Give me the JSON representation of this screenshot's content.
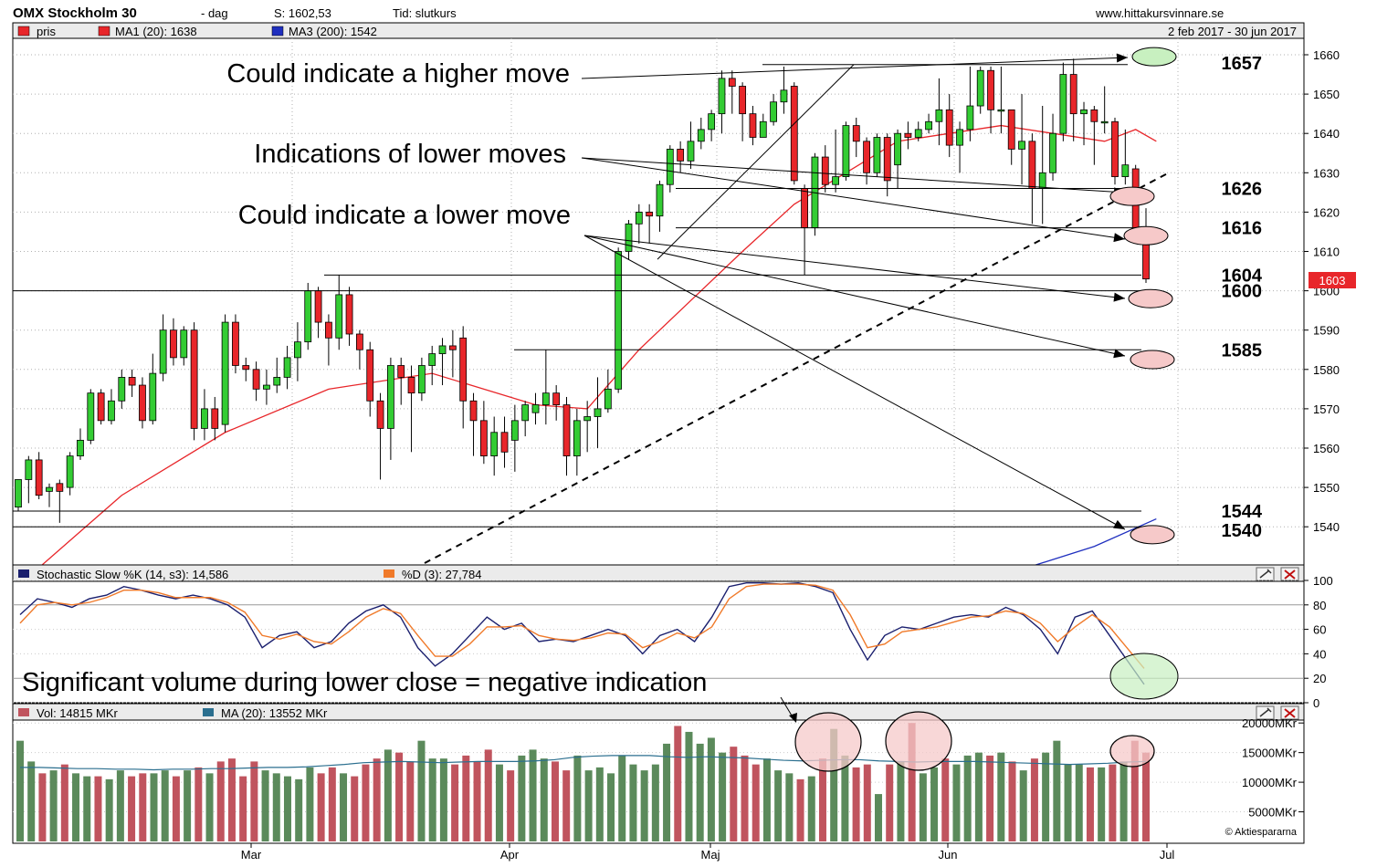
{
  "header": {
    "title": "OMX Stockholm 30",
    "period": "-  dag",
    "close_label": "S: 1602,53",
    "time_label": "Tid: slutkurs",
    "site": "www.hittakursvinnare.se",
    "date_range": "2 feb 2017 - 30 jun 2017"
  },
  "legend": {
    "price": {
      "label": "pris",
      "color": "#e8262a"
    },
    "ma1": {
      "label": "MA1 (20): 1638",
      "color": "#e8262a"
    },
    "ma3": {
      "label": "MA3 (200): 1542",
      "color": "#1f2fbf"
    }
  },
  "stoch_legend": {
    "k": {
      "label": "Stochastic Slow %K (14, s3): 14,586",
      "color": "#1a1f6e"
    },
    "d": {
      "label": "%D (3): 27,784",
      "color": "#f07a2a"
    }
  },
  "vol_legend": {
    "vol": {
      "label": "Vol: 14815 MKr",
      "color": "#c0545e"
    },
    "ma": {
      "label": "MA (20): 13552 MKr",
      "color": "#2b6f8f"
    }
  },
  "copyright": "© Aktiespararna",
  "price_badge": "1603",
  "annotations": {
    "higher": "Could indicate a higher move",
    "lower_moves": "Indications of lower moves",
    "lower_move": "Could indicate a lower move",
    "volume": "Significant volume during lower close = negative indication"
  },
  "levels": [
    "1657",
    "1626",
    "1616",
    "1604",
    "1600",
    "1585",
    "1544",
    "1540"
  ],
  "chart_data": [
    {
      "type": "candlestick",
      "title": "OMX Stockholm 30 - dag",
      "ylim": [
        1530,
        1665
      ],
      "y_ticks": [
        1540,
        1550,
        1560,
        1570,
        1580,
        1590,
        1600,
        1610,
        1620,
        1630,
        1640,
        1650,
        1660
      ],
      "x_labels": [
        "Mar",
        "Apr",
        "Maj",
        "Jun",
        "Jul"
      ],
      "grid": true,
      "candles": [
        [
          1545,
          1552,
          1544,
          1551
        ],
        [
          1552,
          1557,
          1546,
          1558
        ],
        [
          1557,
          1548,
          1547,
          1559
        ],
        [
          1549,
          1550,
          1545,
          1551
        ],
        [
          1551,
          1549,
          1541,
          1552
        ],
        [
          1550,
          1558,
          1548,
          1559
        ],
        [
          1558,
          1562,
          1557,
          1565
        ],
        [
          1562,
          1574,
          1561,
          1575
        ],
        [
          1574,
          1567,
          1566,
          1575
        ],
        [
          1567,
          1572,
          1566,
          1575
        ],
        [
          1572,
          1578,
          1570,
          1580
        ],
        [
          1578,
          1576,
          1573,
          1580
        ],
        [
          1576,
          1567,
          1565,
          1578
        ],
        [
          1567,
          1579,
          1566,
          1584
        ],
        [
          1579,
          1590,
          1577,
          1594
        ],
        [
          1590,
          1583,
          1581,
          1593
        ],
        [
          1583,
          1590,
          1581,
          1591
        ],
        [
          1590,
          1565,
          1562,
          1592
        ],
        [
          1565,
          1570,
          1562,
          1575
        ],
        [
          1570,
          1565,
          1562,
          1573
        ],
        [
          1566,
          1592,
          1564,
          1594
        ],
        [
          1592,
          1581,
          1579,
          1594
        ],
        [
          1581,
          1580,
          1577,
          1583
        ],
        [
          1580,
          1575,
          1572,
          1582
        ],
        [
          1575,
          1576,
          1571,
          1580
        ],
        [
          1576,
          1578,
          1574,
          1583
        ],
        [
          1578,
          1583,
          1575,
          1586
        ],
        [
          1583,
          1587,
          1577,
          1592
        ],
        [
          1587,
          1600,
          1585,
          1602
        ],
        [
          1600,
          1592,
          1588,
          1601
        ],
        [
          1592,
          1588,
          1581,
          1594
        ],
        [
          1588,
          1599,
          1585,
          1604
        ],
        [
          1599,
          1589,
          1586,
          1601
        ],
        [
          1589,
          1585,
          1580,
          1590
        ],
        [
          1585,
          1572,
          1568,
          1587
        ],
        [
          1572,
          1565,
          1552,
          1574
        ],
        [
          1565,
          1581,
          1557,
          1583
        ],
        [
          1581,
          1578,
          1571,
          1583
        ],
        [
          1578,
          1574,
          1559,
          1581
        ],
        [
          1574,
          1581,
          1572,
          1583
        ],
        [
          1581,
          1584,
          1576,
          1586
        ],
        [
          1584,
          1586,
          1576,
          1588
        ],
        [
          1586,
          1585,
          1578,
          1590
        ],
        [
          1588,
          1572,
          1565,
          1591
        ],
        [
          1572,
          1567,
          1558,
          1574
        ],
        [
          1567,
          1558,
          1556,
          1572
        ],
        [
          1558,
          1564,
          1553,
          1568
        ],
        [
          1564,
          1559,
          1555,
          1568
        ],
        [
          1562,
          1567,
          1554,
          1571
        ],
        [
          1567,
          1571,
          1563,
          1572
        ],
        [
          1569,
          1571,
          1566,
          1574
        ],
        [
          1571,
          1574,
          1566,
          1585
        ],
        [
          1574,
          1571,
          1567,
          1576
        ],
        [
          1571,
          1558,
          1553,
          1573
        ],
        [
          1558,
          1567,
          1553,
          1570
        ],
        [
          1567,
          1568,
          1559,
          1572
        ],
        [
          1568,
          1570,
          1560,
          1578
        ],
        [
          1570,
          1575,
          1569,
          1580
        ],
        [
          1575,
          1610,
          1574,
          1611
        ],
        [
          1610,
          1617,
          1608,
          1618
        ],
        [
          1617,
          1620,
          1612,
          1622
        ],
        [
          1620,
          1619,
          1612,
          1622
        ],
        [
          1619,
          1627,
          1615,
          1628
        ],
        [
          1627,
          1636,
          1625,
          1637
        ],
        [
          1636,
          1633,
          1630,
          1638
        ],
        [
          1633,
          1638,
          1631,
          1643
        ],
        [
          1638,
          1641,
          1636,
          1644
        ],
        [
          1641,
          1645,
          1638,
          1646
        ],
        [
          1645,
          1654,
          1640,
          1656
        ],
        [
          1654,
          1652,
          1645,
          1656
        ],
        [
          1652,
          1645,
          1638,
          1653
        ],
        [
          1645,
          1639,
          1637,
          1647
        ],
        [
          1639,
          1643,
          1639,
          1645
        ],
        [
          1643,
          1648,
          1642,
          1650
        ],
        [
          1648,
          1651,
          1645,
          1657
        ],
        [
          1652,
          1628,
          1627,
          1653
        ],
        [
          1626,
          1616,
          1604,
          1627
        ],
        [
          1616,
          1634,
          1614,
          1635
        ],
        [
          1634,
          1627,
          1625,
          1637
        ],
        [
          1627,
          1629,
          1625,
          1641
        ],
        [
          1629,
          1642,
          1628,
          1643
        ],
        [
          1642,
          1638,
          1634,
          1644
        ],
        [
          1638,
          1630,
          1627,
          1639
        ],
        [
          1630,
          1639,
          1629,
          1640
        ],
        [
          1639,
          1628,
          1624,
          1640
        ],
        [
          1632,
          1640,
          1626,
          1641
        ],
        [
          1640,
          1639,
          1636,
          1643
        ],
        [
          1639,
          1641,
          1638,
          1643
        ],
        [
          1641,
          1643,
          1640,
          1645
        ],
        [
          1643,
          1646,
          1637,
          1654
        ],
        [
          1646,
          1637,
          1634,
          1650
        ],
        [
          1637,
          1641,
          1630,
          1643
        ],
        [
          1641,
          1647,
          1638,
          1657
        ],
        [
          1647,
          1656,
          1645,
          1657
        ],
        [
          1656,
          1646,
          1640,
          1657
        ],
        [
          1646,
          1646,
          1640,
          1657
        ],
        [
          1646,
          1636,
          1632,
          1646
        ],
        [
          1636,
          1638,
          1627,
          1650
        ],
        [
          1638,
          1626,
          1617,
          1640
        ],
        [
          1626,
          1630,
          1617,
          1647
        ],
        [
          1630,
          1640,
          1628,
          1645
        ],
        [
          1640,
          1655,
          1638,
          1658
        ],
        [
          1655,
          1645,
          1638,
          1659
        ],
        [
          1645,
          1646,
          1637,
          1648
        ],
        [
          1646,
          1643,
          1632,
          1647
        ],
        [
          1643,
          1643,
          1640,
          1652
        ],
        [
          1643,
          1629,
          1627,
          1644
        ],
        [
          1629,
          1632,
          1627,
          1641
        ],
        [
          1631,
          1613,
          1612,
          1632
        ],
        [
          1613,
          1603,
          1602,
          1621
        ]
      ],
      "ma1_points": [
        [
          0,
          1525
        ],
        [
          10,
          1548
        ],
        [
          20,
          1564
        ],
        [
          30,
          1575
        ],
        [
          40,
          1579
        ],
        [
          50,
          1571
        ],
        [
          55,
          1570
        ],
        [
          60,
          1585
        ],
        [
          70,
          1610
        ],
        [
          75,
          1622
        ],
        [
          80,
          1630
        ],
        [
          85,
          1638
        ],
        [
          90,
          1640
        ],
        [
          95,
          1642
        ],
        [
          100,
          1640
        ],
        [
          105,
          1638
        ],
        [
          108,
          1641
        ],
        [
          110,
          1638
        ]
      ],
      "ma3_points": [
        [
          98,
          1530
        ],
        [
          104,
          1535
        ],
        [
          110,
          1542
        ]
      ]
    },
    {
      "type": "line",
      "title": "Stochastic Slow %K (14, s3) / %D (3)",
      "ylim": [
        0,
        100
      ],
      "y_ticks": [
        0,
        20,
        40,
        60,
        80,
        100
      ],
      "series": [
        {
          "name": "%K",
          "values": [
            72,
            85,
            82,
            78,
            85,
            88,
            95,
            92,
            88,
            85,
            88,
            85,
            80,
            70,
            45,
            55,
            58,
            45,
            50,
            65,
            75,
            80,
            70,
            45,
            30,
            40,
            55,
            70,
            60,
            65,
            50,
            52,
            50,
            55,
            60,
            55,
            40,
            55,
            60,
            50,
            70,
            95,
            98,
            98,
            97,
            98,
            95,
            90,
            60,
            35,
            55,
            62,
            60,
            65,
            70,
            72,
            70,
            78,
            72,
            60,
            40,
            70,
            75,
            55,
            35,
            15
          ]
        },
        {
          "name": "%D",
          "values": [
            65,
            80,
            82,
            80,
            82,
            86,
            92,
            92,
            90,
            86,
            86,
            86,
            82,
            74,
            55,
            52,
            56,
            50,
            48,
            58,
            70,
            77,
            73,
            55,
            38,
            38,
            48,
            62,
            62,
            63,
            55,
            52,
            51,
            53,
            57,
            56,
            45,
            50,
            57,
            53,
            62,
            85,
            95,
            97,
            97,
            97,
            96,
            92,
            72,
            45,
            48,
            58,
            60,
            62,
            66,
            70,
            71,
            75,
            73,
            65,
            50,
            62,
            72,
            62,
            45,
            28
          ]
        }
      ],
      "reference_lines": [
        20,
        80
      ]
    },
    {
      "type": "bar",
      "title": "Vol / MA (20) MKr",
      "ylim": [
        0,
        20000
      ],
      "y_ticks": [
        5000,
        10000,
        15000,
        20000
      ],
      "tick_labels": [
        "5000MKr",
        "10000MKr",
        "15000MKr",
        "20000MKr"
      ],
      "series": [
        {
          "name": "Vol",
          "values": [
            17000,
            13500,
            11500,
            12000,
            13000,
            11500,
            11000,
            11000,
            10500,
            12000,
            11000,
            11500,
            11500,
            12000,
            11000,
            12000,
            12500,
            11500,
            13500,
            14000,
            11000,
            13500,
            12000,
            11500,
            11000,
            10500,
            12500,
            11500,
            12500,
            11500,
            11000,
            13000,
            14000,
            15500,
            15000,
            13500,
            17000,
            14000,
            14000,
            13000,
            14500,
            13500,
            15500,
            13000,
            12000,
            14500,
            15500,
            14000,
            13500,
            12000,
            14500,
            12000,
            12500,
            11500,
            14500,
            13000,
            12000,
            13000,
            16500,
            19500,
            18500,
            16500,
            17500,
            15000,
            16000,
            14500,
            13000,
            14000,
            12000,
            11500,
            10500,
            11000,
            14000,
            19000,
            14500,
            12500,
            13000,
            8000,
            13000,
            13500,
            20000,
            11500,
            12500,
            14000,
            13000,
            14500,
            15000,
            14500,
            15000,
            13500,
            12000,
            14000,
            15000,
            17000,
            13000,
            13000,
            12500,
            12500,
            13000,
            13500,
            17000,
            15000
          ]
        },
        {
          "name": "MA (20)",
          "values": [
            12500,
            12500,
            12400,
            12300,
            12300,
            12200,
            12200,
            12100,
            12200,
            12200,
            12300,
            12300,
            12400,
            12500,
            12500,
            12600,
            12800,
            13000,
            13300,
            13400,
            13500,
            13400,
            13300,
            13400,
            13500,
            13500,
            13500,
            13600,
            13800,
            14200,
            14400,
            14500,
            14500,
            14500,
            14300,
            14200,
            14300,
            14200,
            14100,
            13900,
            13700,
            13600,
            13700,
            13800,
            13800,
            13600,
            13500,
            13400,
            13500,
            13500,
            13500,
            13400,
            13300,
            13200,
            13100,
            13000,
            13100,
            13200,
            13400,
            13500
          ]
        }
      ]
    }
  ]
}
